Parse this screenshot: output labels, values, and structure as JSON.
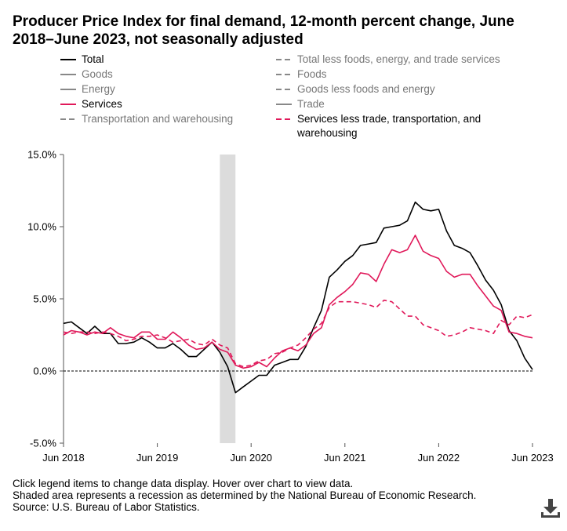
{
  "title": "Producer Price Index for final demand, 12-month percent change, June 2018–June 2023, not seasonally adjusted",
  "legend": [
    {
      "id": "total",
      "label": "Total",
      "style": "solid",
      "color": "#000000",
      "active": true
    },
    {
      "id": "tlfets",
      "label": "Total less foods, energy, and trade services",
      "style": "dashed",
      "color": "#888888",
      "active": false
    },
    {
      "id": "goods",
      "label": "Goods",
      "style": "solid",
      "color": "#888888",
      "active": false
    },
    {
      "id": "foods",
      "label": "Foods",
      "style": "dashed",
      "color": "#888888",
      "active": false
    },
    {
      "id": "energy",
      "label": "Energy",
      "style": "solid",
      "color": "#888888",
      "active": false
    },
    {
      "id": "glfe",
      "label": "Goods less foods and energy",
      "style": "dashed",
      "color": "#888888",
      "active": false
    },
    {
      "id": "services",
      "label": "Services",
      "style": "solid",
      "color": "#e0195a",
      "active": true
    },
    {
      "id": "trade",
      "label": "Trade",
      "style": "solid",
      "color": "#888888",
      "active": false
    },
    {
      "id": "transport",
      "label": "Transportation and warehousing",
      "style": "dashed",
      "color": "#888888",
      "active": false
    },
    {
      "id": "slttw",
      "label": "Services less trade, transportation, and warehousing",
      "style": "dashed",
      "color": "#e0195a",
      "active": true
    }
  ],
  "chart_data": {
    "type": "line",
    "title": "Producer Price Index for final demand, 12-month percent change",
    "xlabel": "",
    "ylabel": "",
    "ylim": [
      -5.0,
      15.0
    ],
    "yticks": [
      "15.0%",
      "10.0%",
      "5.0%",
      "0.0%",
      "-5.0%"
    ],
    "ytick_values": [
      15,
      10,
      5,
      0,
      -5
    ],
    "xticks": [
      "Jun 2018",
      "Jun 2019",
      "Jun 2020",
      "Jun 2021",
      "Jun 2022",
      "Jun 2023"
    ],
    "xtick_index": [
      0,
      12,
      24,
      36,
      48,
      60
    ],
    "recession_shading": {
      "start_index": 20,
      "end_index": 22
    },
    "x_count": 61,
    "series": [
      {
        "name": "Total",
        "style": "solid",
        "color": "#000000",
        "values": [
          3.3,
          3.4,
          3.0,
          2.6,
          3.1,
          2.6,
          2.6,
          1.9,
          1.9,
          2.0,
          2.3,
          2.0,
          1.6,
          1.6,
          1.9,
          1.5,
          1.0,
          1.0,
          1.5,
          2.0,
          1.3,
          0.3,
          -1.5,
          -1.1,
          -0.7,
          -0.3,
          -0.3,
          0.4,
          0.6,
          0.8,
          0.8,
          1.7,
          3.0,
          4.2,
          6.5,
          7.0,
          7.6,
          8.0,
          8.7,
          8.8,
          8.9,
          9.9,
          10.0,
          10.1,
          10.4,
          11.7,
          11.2,
          11.1,
          11.2,
          9.7,
          8.7,
          8.5,
          8.2,
          7.3,
          6.3,
          5.6,
          4.6,
          2.8,
          2.1,
          0.9,
          0.1
        ]
      },
      {
        "name": "Services",
        "style": "solid",
        "color": "#e0195a",
        "values": [
          2.5,
          2.8,
          2.7,
          2.5,
          2.7,
          2.6,
          3.0,
          2.6,
          2.4,
          2.3,
          2.7,
          2.7,
          2.2,
          2.2,
          2.7,
          2.3,
          1.8,
          1.5,
          1.6,
          2.0,
          1.5,
          1.3,
          0.4,
          0.2,
          0.3,
          0.6,
          0.3,
          0.9,
          1.4,
          1.6,
          1.4,
          1.8,
          2.6,
          3.0,
          4.6,
          5.1,
          5.5,
          6.0,
          6.8,
          6.7,
          6.2,
          7.4,
          8.4,
          8.2,
          8.4,
          9.4,
          8.3,
          8.0,
          7.8,
          6.9,
          6.5,
          6.7,
          6.7,
          5.9,
          5.2,
          4.5,
          4.2,
          2.7,
          2.6,
          2.4,
          2.3
        ]
      },
      {
        "name": "Services less trade, transportation, and warehousing",
        "style": "dashed",
        "color": "#e0195a",
        "values": [
          2.7,
          2.6,
          2.7,
          2.7,
          2.6,
          2.7,
          2.6,
          2.4,
          2.1,
          2.2,
          2.4,
          2.4,
          2.5,
          2.3,
          2.0,
          2.1,
          2.2,
          1.9,
          1.8,
          2.2,
          1.8,
          1.6,
          0.5,
          0.3,
          0.4,
          0.7,
          0.8,
          1.2,
          1.3,
          1.6,
          1.8,
          2.3,
          2.9,
          3.3,
          4.4,
          4.8,
          4.8,
          4.8,
          4.7,
          4.6,
          4.4,
          4.9,
          4.8,
          4.3,
          3.8,
          3.8,
          3.2,
          3.0,
          2.8,
          2.4,
          2.5,
          2.7,
          3.0,
          2.9,
          2.8,
          2.6,
          3.5,
          3.2,
          3.8,
          3.7,
          3.9
        ]
      }
    ]
  },
  "notes": [
    "Click legend items to change data display. Hover over chart to view data.",
    "Shaded area represents a recession as determined by the National Bureau of Economic Research.",
    "Source: U.S. Bureau of Labor Statistics."
  ],
  "icons": {
    "download": "download-icon"
  }
}
